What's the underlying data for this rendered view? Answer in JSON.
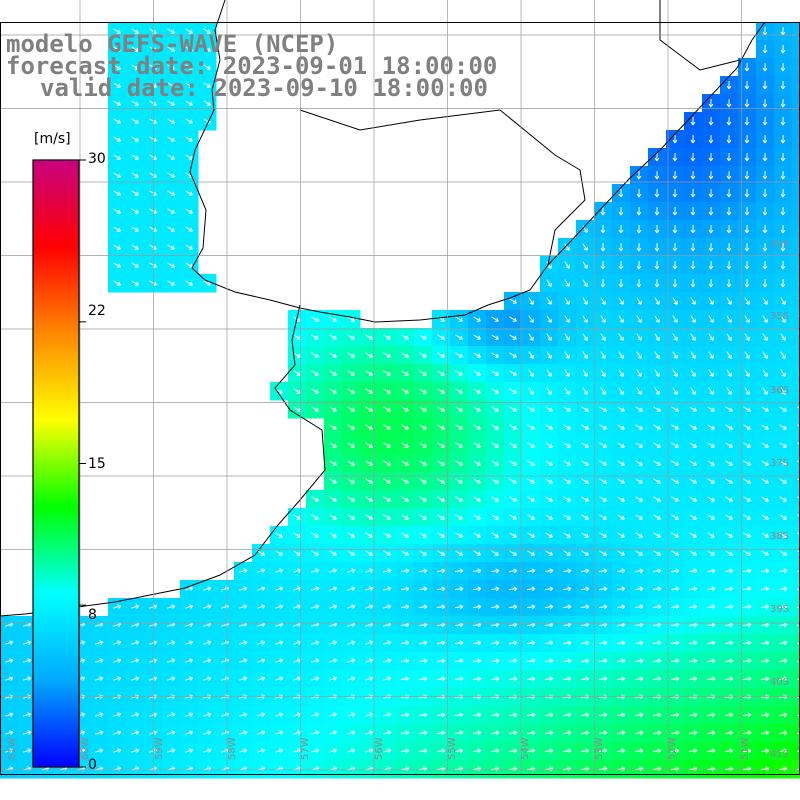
{
  "title": {
    "model": "modelo GEFS-WAVE (NCEP)",
    "forecast": "forecast date: 2023-09-01 18:00:00",
    "valid": "valid date: 2023-09-10 18:00:00"
  },
  "colorbar": {
    "unit": "[m/s]",
    "ticks": [
      "30",
      "22",
      "15",
      "8",
      "0"
    ],
    "tick_values": [
      30,
      22,
      15,
      8,
      0
    ],
    "min": 0,
    "max": 30,
    "colors": [
      "#0000ff",
      "#00aaff",
      "#00ffff",
      "#00ff00",
      "#ffff00",
      "#ff8800",
      "#ff0000",
      "#c80080"
    ]
  },
  "map": {
    "variable": "wind speed and direction",
    "units": "m/s",
    "lat_labels": [
      "34S",
      "35S",
      "36S",
      "37S",
      "38S",
      "39S",
      "40S",
      "41S"
    ],
    "lon_labels": [
      "61W",
      "60W",
      "59W",
      "58W",
      "57W",
      "56W",
      "55W",
      "54W",
      "53W",
      "52W",
      "51W"
    ],
    "lat_range": [
      -41.3,
      -30.0
    ],
    "lon_range": [
      -61.3,
      -50.5
    ]
  }
}
